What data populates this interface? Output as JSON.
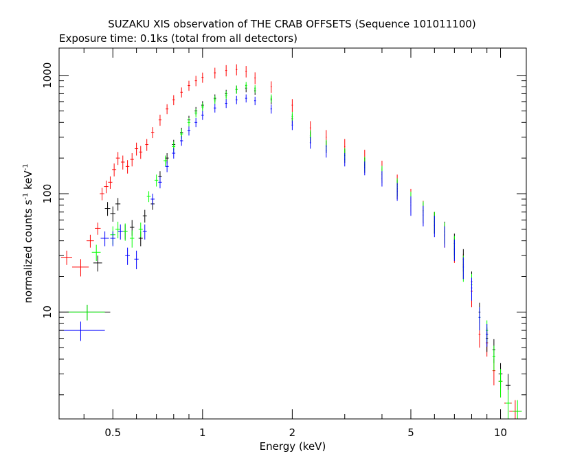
{
  "chart_data": {
    "type": "scatter",
    "title": "SUZAKU XIS observation of THE CRAB OFFSETS (Sequence 101011100)",
    "subtitle": "Exposure time: 0.1ks (total from all detectors)",
    "xlabel": "Energy (keV)",
    "ylabel_main": "normalized counts s",
    "ylabel_sup1": "-1",
    "ylabel_mid": " keV",
    "ylabel_sup2": "-1",
    "x_scale": "log",
    "y_scale": "log",
    "xlim": [
      0.33,
      12.2
    ],
    "ylim": [
      1.25,
      1700
    ],
    "x_ticks": [
      {
        "value": 0.5,
        "label": "0.5"
      },
      {
        "value": 1,
        "label": "1"
      },
      {
        "value": 2,
        "label": "2"
      },
      {
        "value": 5,
        "label": "5"
      },
      {
        "value": 10,
        "label": "10"
      }
    ],
    "y_ticks": [
      {
        "value": 10,
        "label": "10"
      },
      {
        "value": 100,
        "label": "100"
      },
      {
        "value": 1000,
        "label": "1000"
      }
    ],
    "grid": false,
    "legend": "none",
    "series": [
      {
        "color": "#ff0000",
        "points": [
          [
            0.35,
            29,
            0.015,
            4
          ],
          [
            0.39,
            24,
            0.025,
            4
          ],
          [
            0.42,
            40,
            0.012,
            5
          ],
          [
            0.445,
            51,
            0.01,
            6
          ],
          [
            0.46,
            100,
            0.008,
            12
          ],
          [
            0.475,
            115,
            0.008,
            14
          ],
          [
            0.49,
            125,
            0.008,
            15
          ],
          [
            0.505,
            160,
            0.008,
            20
          ],
          [
            0.52,
            200,
            0.008,
            25
          ],
          [
            0.54,
            185,
            0.008,
            25
          ],
          [
            0.56,
            170,
            0.008,
            22
          ],
          [
            0.58,
            195,
            0.008,
            25
          ],
          [
            0.6,
            240,
            0.008,
            30
          ],
          [
            0.62,
            225,
            0.008,
            28
          ],
          [
            0.65,
            260,
            0.008,
            30
          ],
          [
            0.68,
            330,
            0.008,
            35
          ],
          [
            0.72,
            420,
            0.008,
            45
          ],
          [
            0.76,
            520,
            0.008,
            50
          ],
          [
            0.8,
            620,
            0.008,
            60
          ],
          [
            0.85,
            720,
            0.008,
            70
          ],
          [
            0.9,
            820,
            0.008,
            80
          ],
          [
            0.95,
            900,
            0.008,
            90
          ],
          [
            1.0,
            960,
            0.008,
            95
          ],
          [
            1.1,
            1050,
            0.008,
            110
          ],
          [
            1.2,
            1100,
            0.008,
            120
          ],
          [
            1.3,
            1120,
            0.008,
            120
          ],
          [
            1.4,
            1080,
            0.008,
            120
          ],
          [
            1.5,
            950,
            0.008,
            110
          ],
          [
            1.7,
            800,
            0.008,
            90
          ],
          [
            2.0,
            560,
            0.01,
            70
          ],
          [
            2.3,
            360,
            0.01,
            50
          ],
          [
            2.6,
            300,
            0.01,
            45
          ],
          [
            3.0,
            250,
            0.01,
            40
          ],
          [
            3.5,
            200,
            0.012,
            35
          ],
          [
            4.0,
            160,
            0.012,
            30
          ],
          [
            4.5,
            120,
            0.015,
            25
          ],
          [
            5.0,
            90,
            0.015,
            20
          ],
          [
            5.5,
            72,
            0.018,
            15
          ],
          [
            6.0,
            58,
            0.02,
            12
          ],
          [
            6.5,
            45,
            0.02,
            10
          ],
          [
            7.0,
            34,
            0.025,
            8
          ],
          [
            7.5,
            25,
            0.03,
            6
          ],
          [
            8.0,
            15,
            0.05,
            4
          ],
          [
            8.5,
            6.5,
            0.06,
            1.5
          ],
          [
            9.0,
            5.5,
            0.08,
            1.3
          ],
          [
            9.5,
            3.2,
            0.1,
            0.8
          ],
          [
            10.0,
            2.6,
            0.15,
            0.7
          ],
          [
            10.6,
            1.7,
            0.3,
            0.4
          ],
          [
            11.2,
            1.45,
            0.5,
            0.35
          ]
        ]
      },
      {
        "color": "#000000",
        "points": [
          [
            0.41,
            10,
            0.08,
            1.5
          ],
          [
            0.445,
            26,
            0.015,
            4
          ],
          [
            0.48,
            75,
            0.01,
            10
          ],
          [
            0.5,
            68,
            0.01,
            10
          ],
          [
            0.52,
            82,
            0.01,
            10
          ],
          [
            0.55,
            48,
            0.01,
            7
          ],
          [
            0.58,
            52,
            0.01,
            8
          ],
          [
            0.62,
            42,
            0.01,
            6
          ],
          [
            0.64,
            65,
            0.01,
            8
          ],
          [
            0.68,
            82,
            0.01,
            9
          ],
          [
            0.72,
            140,
            0.01,
            15
          ],
          [
            0.76,
            200,
            0.01,
            20
          ],
          [
            0.8,
            260,
            0.01,
            25
          ],
          [
            0.85,
            330,
            0.01,
            30
          ],
          [
            0.9,
            420,
            0.01,
            35
          ],
          [
            0.95,
            500,
            0.01,
            40
          ],
          [
            1.0,
            560,
            0.01,
            45
          ],
          [
            1.1,
            640,
            0.01,
            50
          ],
          [
            1.2,
            700,
            0.01,
            55
          ],
          [
            1.3,
            760,
            0.01,
            60
          ],
          [
            1.4,
            780,
            0.01,
            60
          ],
          [
            1.5,
            740,
            0.01,
            55
          ],
          [
            1.7,
            620,
            0.01,
            50
          ],
          [
            2.0,
            430,
            0.01,
            40
          ],
          [
            2.3,
            300,
            0.01,
            35
          ],
          [
            2.6,
            250,
            0.01,
            30
          ],
          [
            3.0,
            210,
            0.012,
            28
          ],
          [
            3.5,
            175,
            0.012,
            25
          ],
          [
            4.0,
            145,
            0.012,
            22
          ],
          [
            4.5,
            110,
            0.015,
            20
          ],
          [
            5.0,
            85,
            0.015,
            16
          ],
          [
            5.5,
            70,
            0.018,
            14
          ],
          [
            6.0,
            58,
            0.02,
            12
          ],
          [
            6.5,
            48,
            0.02,
            10
          ],
          [
            7.0,
            38,
            0.025,
            8
          ],
          [
            7.5,
            28,
            0.03,
            6
          ],
          [
            8.0,
            18,
            0.04,
            4
          ],
          [
            8.5,
            10,
            0.06,
            2
          ],
          [
            9.0,
            6,
            0.08,
            1.4
          ],
          [
            9.5,
            4.8,
            0.1,
            1.1
          ],
          [
            10.0,
            3.0,
            0.15,
            0.7
          ],
          [
            10.6,
            2.4,
            0.2,
            0.6
          ]
        ]
      },
      {
        "color": "#00ff00",
        "points": [
          [
            0.41,
            10,
            0.06,
            1.5
          ],
          [
            0.44,
            32,
            0.015,
            5
          ],
          [
            0.5,
            45,
            0.01,
            8
          ],
          [
            0.52,
            50,
            0.01,
            8
          ],
          [
            0.55,
            48,
            0.01,
            8
          ],
          [
            0.58,
            42,
            0.01,
            7
          ],
          [
            0.62,
            50,
            0.01,
            7
          ],
          [
            0.66,
            95,
            0.01,
            10
          ],
          [
            0.7,
            130,
            0.01,
            15
          ],
          [
            0.75,
            190,
            0.01,
            20
          ],
          [
            0.8,
            250,
            0.01,
            25
          ],
          [
            0.85,
            320,
            0.01,
            30
          ],
          [
            0.9,
            400,
            0.01,
            35
          ],
          [
            0.95,
            480,
            0.01,
            40
          ],
          [
            1.0,
            540,
            0.01,
            45
          ],
          [
            1.1,
            620,
            0.01,
            50
          ],
          [
            1.2,
            680,
            0.01,
            55
          ],
          [
            1.3,
            760,
            0.01,
            60
          ],
          [
            1.4,
            820,
            0.01,
            60
          ],
          [
            1.5,
            770,
            0.01,
            55
          ],
          [
            1.7,
            640,
            0.01,
            50
          ],
          [
            2.0,
            450,
            0.01,
            40
          ],
          [
            2.3,
            310,
            0.01,
            35
          ],
          [
            2.6,
            255,
            0.01,
            30
          ],
          [
            3.0,
            215,
            0.012,
            28
          ],
          [
            3.5,
            180,
            0.012,
            25
          ],
          [
            4.0,
            150,
            0.012,
            22
          ],
          [
            4.5,
            115,
            0.015,
            20
          ],
          [
            5.0,
            88,
            0.015,
            16
          ],
          [
            5.5,
            72,
            0.018,
            14
          ],
          [
            6.0,
            58,
            0.02,
            12
          ],
          [
            6.5,
            47,
            0.02,
            10
          ],
          [
            7.0,
            36,
            0.025,
            8
          ],
          [
            7.5,
            24,
            0.03,
            6
          ],
          [
            8.0,
            17,
            0.04,
            4
          ],
          [
            8.5,
            9,
            0.06,
            2
          ],
          [
            9.0,
            7,
            0.08,
            1.5
          ],
          [
            9.5,
            4.2,
            0.1,
            1.0
          ],
          [
            10.0,
            2.6,
            0.15,
            0.7
          ],
          [
            10.6,
            1.7,
            0.2,
            0.5
          ],
          [
            11.4,
            1.45,
            0.4,
            0.35
          ]
        ]
      },
      {
        "color": "#0000ff",
        "points": [
          [
            0.39,
            7,
            0.08,
            1.3
          ],
          [
            0.47,
            42,
            0.015,
            6
          ],
          [
            0.5,
            42,
            0.01,
            6
          ],
          [
            0.53,
            48,
            0.01,
            7
          ],
          [
            0.56,
            30,
            0.01,
            5
          ],
          [
            0.6,
            28,
            0.01,
            5
          ],
          [
            0.64,
            48,
            0.01,
            7
          ],
          [
            0.68,
            90,
            0.01,
            10
          ],
          [
            0.72,
            125,
            0.01,
            14
          ],
          [
            0.76,
            170,
            0.01,
            18
          ],
          [
            0.8,
            220,
            0.01,
            22
          ],
          [
            0.85,
            280,
            0.01,
            26
          ],
          [
            0.9,
            340,
            0.01,
            30
          ],
          [
            0.95,
            400,
            0.01,
            35
          ],
          [
            1.0,
            460,
            0.01,
            40
          ],
          [
            1.1,
            530,
            0.01,
            45
          ],
          [
            1.2,
            580,
            0.01,
            50
          ],
          [
            1.3,
            620,
            0.01,
            50
          ],
          [
            1.4,
            640,
            0.01,
            50
          ],
          [
            1.5,
            610,
            0.01,
            50
          ],
          [
            1.7,
            520,
            0.01,
            45
          ],
          [
            2.0,
            380,
            0.01,
            35
          ],
          [
            2.3,
            270,
            0.01,
            30
          ],
          [
            2.6,
            230,
            0.01,
            28
          ],
          [
            3.0,
            195,
            0.012,
            25
          ],
          [
            3.5,
            165,
            0.012,
            22
          ],
          [
            4.0,
            135,
            0.012,
            20
          ],
          [
            4.5,
            105,
            0.015,
            18
          ],
          [
            5.0,
            80,
            0.015,
            15
          ],
          [
            5.5,
            66,
            0.018,
            13
          ],
          [
            6.0,
            54,
            0.02,
            11
          ],
          [
            6.5,
            44,
            0.02,
            9
          ],
          [
            7.0,
            34,
            0.025,
            7
          ],
          [
            7.5,
            24,
            0.03,
            5
          ],
          [
            8.0,
            16,
            0.04,
            3.5
          ],
          [
            8.5,
            9,
            0.06,
            2
          ],
          [
            9.0,
            6.5,
            0.08,
            1.4
          ]
        ]
      }
    ]
  }
}
